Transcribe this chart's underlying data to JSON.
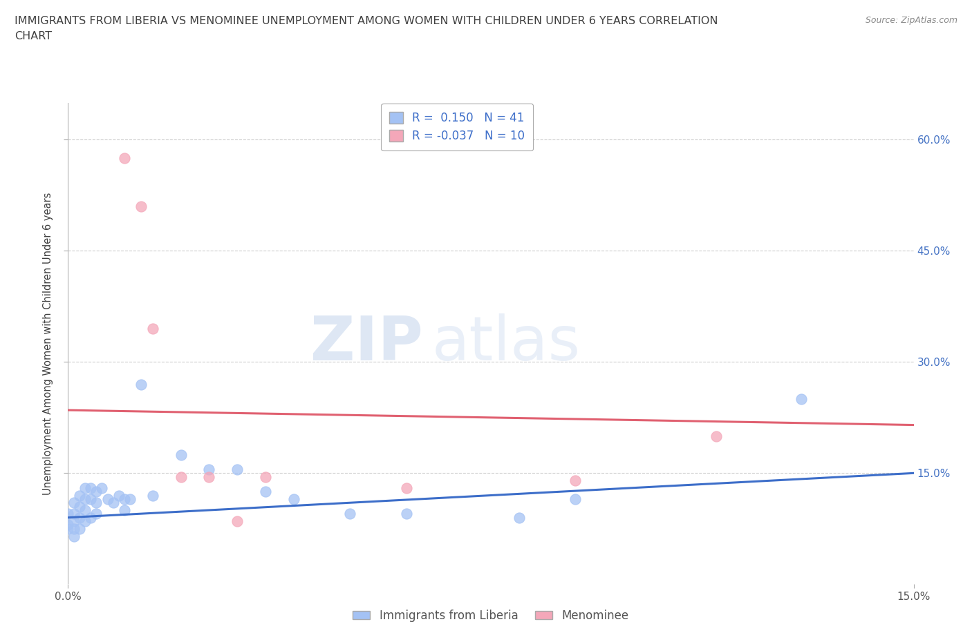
{
  "title_line1": "IMMIGRANTS FROM LIBERIA VS MENOMINEE UNEMPLOYMENT AMONG WOMEN WITH CHILDREN UNDER 6 YEARS CORRELATION",
  "title_line2": "CHART",
  "source": "Source: ZipAtlas.com",
  "ylabel": "Unemployment Among Women with Children Under 6 years",
  "xlim": [
    0.0,
    0.15
  ],
  "ylim": [
    0.0,
    0.65
  ],
  "ytick_labels_right": [
    "60.0%",
    "45.0%",
    "30.0%",
    "15.0%"
  ],
  "ytick_positions_right": [
    0.6,
    0.45,
    0.3,
    0.15
  ],
  "watermark_zip": "ZIP",
  "watermark_atlas": "atlas",
  "blue_color": "#a4c2f4",
  "pink_color": "#f4a7b9",
  "blue_line_color": "#3d6ec9",
  "pink_line_color": "#e06070",
  "R_blue": 0.15,
  "N_blue": 41,
  "R_pink": -0.037,
  "N_pink": 10,
  "blue_scatter_x": [
    0.0,
    0.0,
    0.0,
    0.001,
    0.001,
    0.001,
    0.001,
    0.001,
    0.002,
    0.002,
    0.002,
    0.002,
    0.003,
    0.003,
    0.003,
    0.003,
    0.004,
    0.004,
    0.004,
    0.005,
    0.005,
    0.005,
    0.006,
    0.007,
    0.008,
    0.009,
    0.01,
    0.01,
    0.011,
    0.013,
    0.015,
    0.02,
    0.025,
    0.03,
    0.035,
    0.04,
    0.05,
    0.06,
    0.08,
    0.09,
    0.13
  ],
  "blue_scatter_y": [
    0.095,
    0.08,
    0.075,
    0.11,
    0.095,
    0.085,
    0.075,
    0.065,
    0.12,
    0.105,
    0.09,
    0.075,
    0.13,
    0.115,
    0.1,
    0.085,
    0.13,
    0.115,
    0.09,
    0.125,
    0.11,
    0.095,
    0.13,
    0.115,
    0.11,
    0.12,
    0.115,
    0.1,
    0.115,
    0.27,
    0.12,
    0.175,
    0.155,
    0.155,
    0.125,
    0.115,
    0.095,
    0.095,
    0.09,
    0.115,
    0.25
  ],
  "pink_scatter_x": [
    0.01,
    0.013,
    0.015,
    0.02,
    0.025,
    0.03,
    0.035,
    0.06,
    0.09,
    0.115
  ],
  "pink_scatter_y": [
    0.575,
    0.51,
    0.345,
    0.145,
    0.145,
    0.085,
    0.145,
    0.13,
    0.14,
    0.2
  ],
  "legend_label_blue": "Immigrants from Liberia",
  "legend_label_pink": "Menominee",
  "grid_color": "#cccccc",
  "background_color": "#ffffff",
  "title_color": "#404040",
  "axis_label_color": "#404040",
  "right_tick_color": "#4472c4",
  "source_color": "#888888"
}
